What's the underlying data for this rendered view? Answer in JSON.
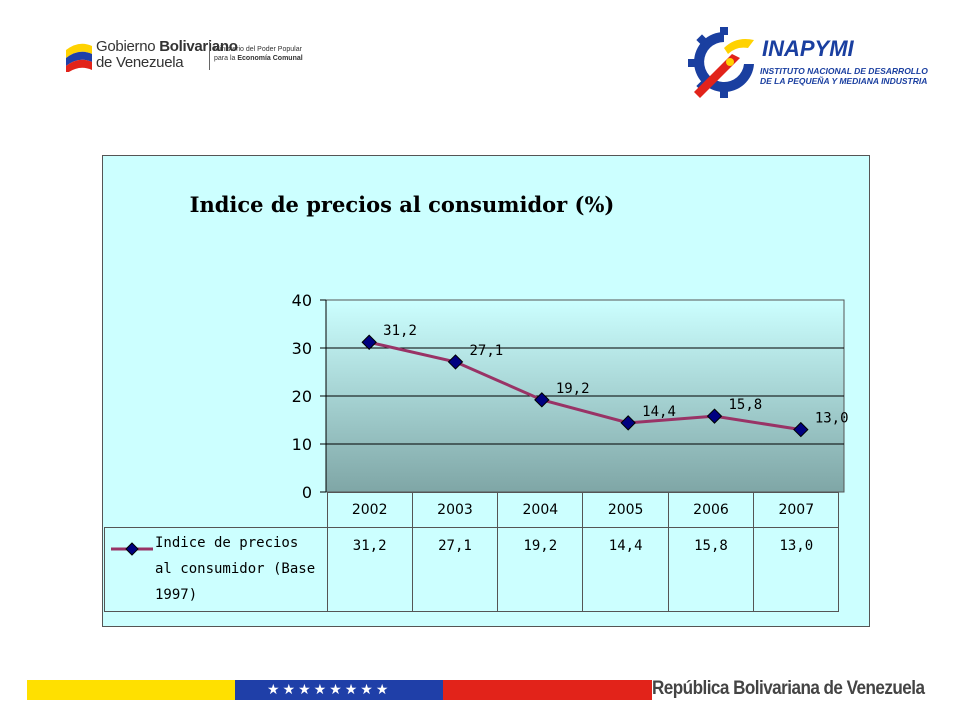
{
  "header": {
    "gov_logo": {
      "line1_prefix": "Gobierno ",
      "line1_bold": "Bolivariano",
      "line2": "de Venezuela",
      "ministry_line1": "Ministerio del Poder Popular",
      "ministry_prefix": "para la ",
      "ministry_bold": "Economía Comunal"
    },
    "inapymi_logo": {
      "name": "INAPYMI",
      "sub1": "INSTITUTO NACIONAL DE DESARROLLO",
      "sub2": "DE LA PEQUEÑA Y MEDIANA INDUSTRIA"
    }
  },
  "chart_data": {
    "type": "line",
    "title": "Indice de precios al consumidor (%)",
    "categories": [
      "2002",
      "2003",
      "2004",
      "2005",
      "2006",
      "2007"
    ],
    "series": [
      {
        "name": "Indice de precios al consumidor (Base 1997)",
        "values": [
          31.2,
          27.1,
          19.2,
          14.4,
          15.8,
          13.0
        ],
        "labels": [
          "31,2",
          "27,1",
          "19,2",
          "14,4",
          "15,8",
          "13,0"
        ]
      }
    ],
    "yticks": [
      "0",
      "10",
      "20",
      "30",
      "40"
    ],
    "ylim": [
      0,
      40
    ],
    "grid": true,
    "legend": "data-table-bottom",
    "colors": {
      "line": "#993366",
      "marker": "#000080",
      "plot_top": "#ccffff",
      "plot_bottom": "#7fa6a6",
      "background": "#ccffff"
    }
  },
  "footer": {
    "stars": "★★★★★★★★",
    "text": "República Bolivariana de Venezuela"
  }
}
